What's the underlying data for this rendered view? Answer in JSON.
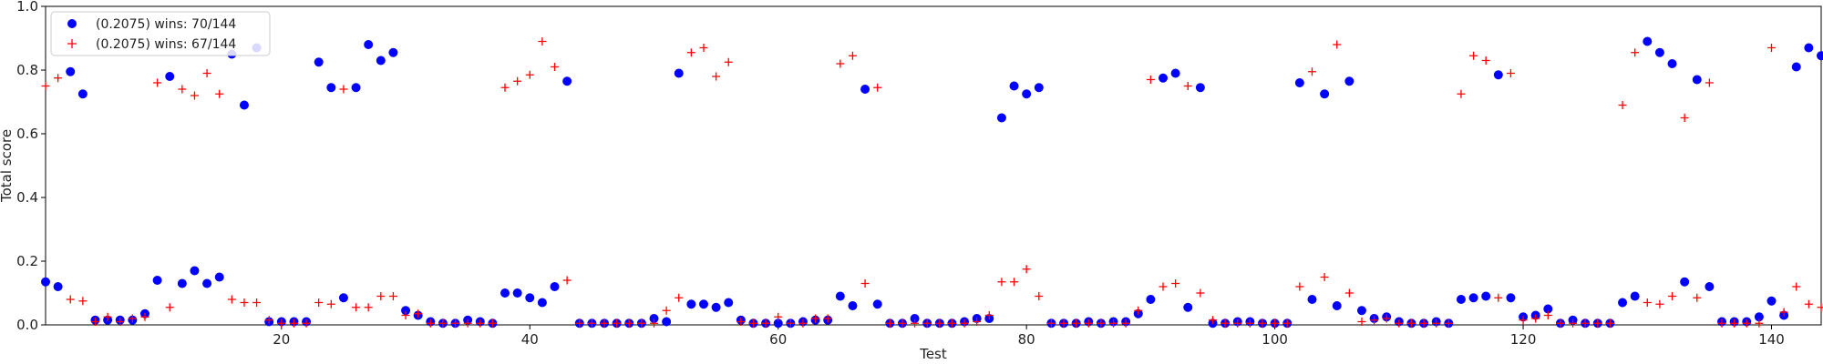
{
  "chart_data": {
    "type": "scatter",
    "title": "",
    "xlabel": "Test",
    "ylabel": "Total score",
    "xlim": [
      1,
      144
    ],
    "ylim": [
      0.0,
      1.0
    ],
    "xticks": [
      20,
      40,
      60,
      80,
      100,
      120,
      140
    ],
    "yticks": [
      0.0,
      0.2,
      0.4,
      0.6,
      0.8,
      1.0
    ],
    "ytick_labels": [
      "0.0",
      "0.2",
      "0.4",
      "0.6",
      "0.8",
      "1.0"
    ],
    "grid": false,
    "legend_position": "top-left",
    "x": [
      1,
      2,
      3,
      4,
      5,
      6,
      7,
      8,
      9,
      10,
      11,
      12,
      13,
      14,
      15,
      16,
      17,
      18,
      19,
      20,
      21,
      22,
      23,
      24,
      25,
      26,
      27,
      28,
      29,
      30,
      31,
      32,
      33,
      34,
      35,
      36,
      37,
      38,
      39,
      40,
      41,
      42,
      43,
      44,
      45,
      46,
      47,
      48,
      49,
      50,
      51,
      52,
      53,
      54,
      55,
      56,
      57,
      58,
      59,
      60,
      61,
      62,
      63,
      64,
      65,
      66,
      67,
      68,
      69,
      70,
      71,
      72,
      73,
      74,
      75,
      76,
      77,
      78,
      79,
      80,
      81,
      82,
      83,
      84,
      85,
      86,
      87,
      88,
      89,
      90,
      91,
      92,
      93,
      94,
      95,
      96,
      97,
      98,
      99,
      100,
      101,
      102,
      103,
      104,
      105,
      106,
      107,
      108,
      109,
      110,
      111,
      112,
      113,
      114,
      115,
      116,
      117,
      118,
      119,
      120,
      121,
      122,
      123,
      124,
      125,
      126,
      127,
      128,
      129,
      130,
      131,
      132,
      133,
      134,
      135,
      136,
      137,
      138,
      139,
      140,
      141,
      142,
      143,
      144
    ],
    "series": [
      {
        "name": "(0.2075) wins: 70/144",
        "marker": "circle",
        "color": "#0000ff",
        "values": [
          0.135,
          0.12,
          0.795,
          0.725,
          0.015,
          0.015,
          0.015,
          0.015,
          0.035,
          0.14,
          0.78,
          0.13,
          0.17,
          0.13,
          0.15,
          0.85,
          0.69,
          0.87,
          0.01,
          0.01,
          0.01,
          0.01,
          0.825,
          0.745,
          0.085,
          0.745,
          0.88,
          0.83,
          0.855,
          0.045,
          0.03,
          0.01,
          0.005,
          0.005,
          0.015,
          0.01,
          0.005,
          0.1,
          0.1,
          0.085,
          0.07,
          0.12,
          0.765,
          0.005,
          0.005,
          0.005,
          0.005,
          0.005,
          0.005,
          0.02,
          0.01,
          0.79,
          0.065,
          0.065,
          0.055,
          0.07,
          0.015,
          0.005,
          0.005,
          0.005,
          0.005,
          0.01,
          0.015,
          0.015,
          0.09,
          0.06,
          0.74,
          0.065,
          0.005,
          0.005,
          0.02,
          0.005,
          0.005,
          0.005,
          0.01,
          0.02,
          0.02,
          0.65,
          0.75,
          0.725,
          0.745,
          0.005,
          0.005,
          0.005,
          0.01,
          0.005,
          0.01,
          0.01,
          0.035,
          0.08,
          0.775,
          0.79,
          0.055,
          0.745,
          0.005,
          0.005,
          0.01,
          0.01,
          0.005,
          0.005,
          0.005,
          0.76,
          0.08,
          0.725,
          0.06,
          0.765,
          0.045,
          0.02,
          0.025,
          0.01,
          0.005,
          0.005,
          0.01,
          0.005,
          0.08,
          0.085,
          0.09,
          0.785,
          0.085,
          0.025,
          0.03,
          0.05,
          0.005,
          0.015,
          0.005,
          0.005,
          0.005,
          0.07,
          0.09,
          0.89,
          0.855,
          0.82,
          0.135,
          0.77,
          0.12,
          0.01,
          0.01,
          0.01,
          0.025,
          0.075,
          0.03,
          0.81,
          0.87,
          0.845
        ]
      },
      {
        "name": "(0.2075) wins: 67/144",
        "marker": "plus",
        "color": "#ff0000",
        "values": [
          0.75,
          0.775,
          0.08,
          0.075,
          0.01,
          0.025,
          0.01,
          0.02,
          0.025,
          0.76,
          0.055,
          0.74,
          0.72,
          0.79,
          0.725,
          0.08,
          0.07,
          0.07,
          0.015,
          0.005,
          0.005,
          0.005,
          0.07,
          0.065,
          0.74,
          0.055,
          0.055,
          0.09,
          0.09,
          0.03,
          0.035,
          0.005,
          0.005,
          0.005,
          0.005,
          0.005,
          0.005,
          0.745,
          0.765,
          0.785,
          0.89,
          0.81,
          0.14,
          0.005,
          0.005,
          0.005,
          0.005,
          0.005,
          0.005,
          0.005,
          0.045,
          0.085,
          0.855,
          0.87,
          0.78,
          0.825,
          0.01,
          0.005,
          0.005,
          0.025,
          0.005,
          0.005,
          0.02,
          0.02,
          0.82,
          0.845,
          0.13,
          0.745,
          0.005,
          0.005,
          0.005,
          0.005,
          0.005,
          0.005,
          0.005,
          0.01,
          0.03,
          0.135,
          0.135,
          0.175,
          0.09,
          0.005,
          0.005,
          0.005,
          0.005,
          0.005,
          0.005,
          0.005,
          0.045,
          0.77,
          0.12,
          0.13,
          0.75,
          0.1,
          0.015,
          0.005,
          0.005,
          0.005,
          0.005,
          0.005,
          0.005,
          0.12,
          0.795,
          0.15,
          0.88,
          0.1,
          0.01,
          0.015,
          0.02,
          0.005,
          0.005,
          0.005,
          0.005,
          0.005,
          0.725,
          0.845,
          0.83,
          0.085,
          0.79,
          0.015,
          0.02,
          0.03,
          0.005,
          0.005,
          0.005,
          0.005,
          0.005,
          0.69,
          0.855,
          0.07,
          0.065,
          0.09,
          0.65,
          0.085,
          0.76,
          0.005,
          0.005,
          0.005,
          0.005,
          0.87,
          0.04,
          0.12,
          0.065,
          0.055
        ]
      }
    ]
  }
}
